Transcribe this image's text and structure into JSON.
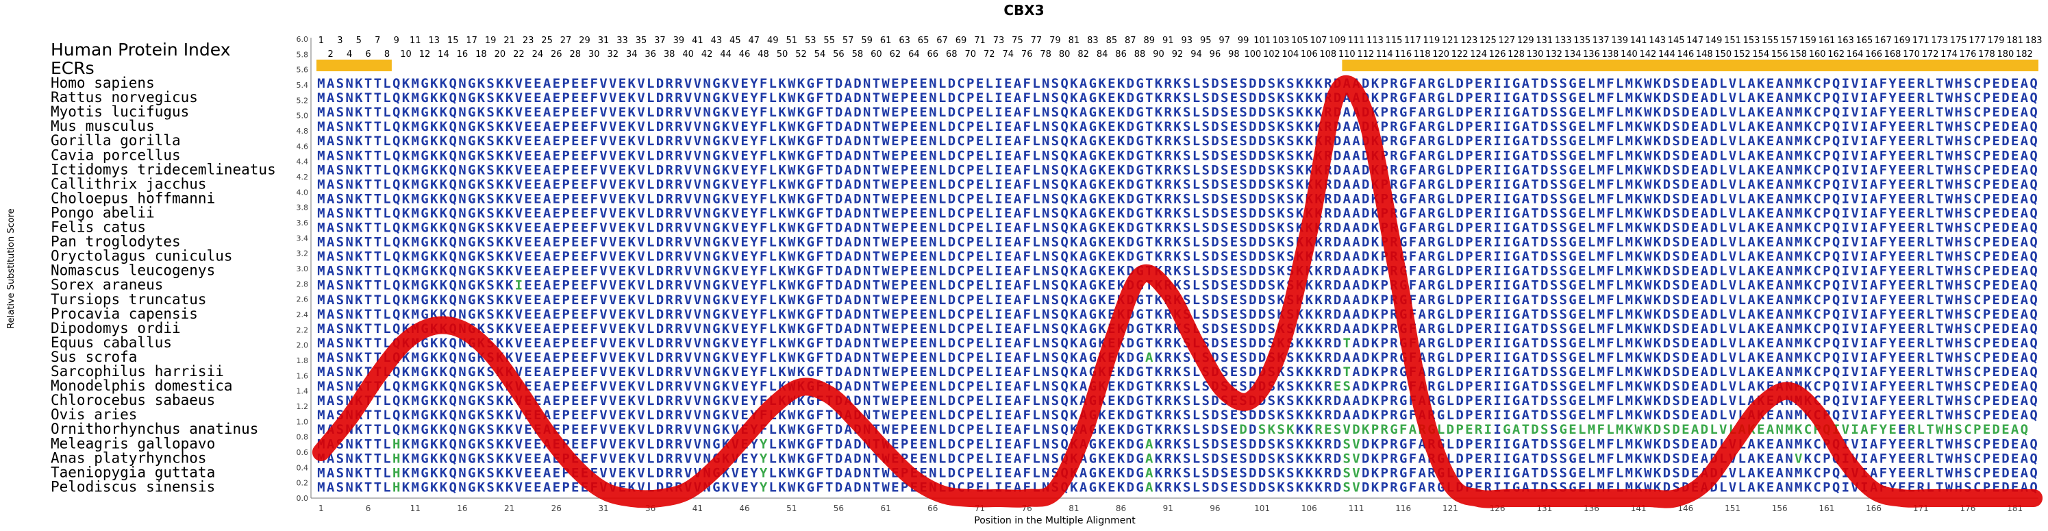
{
  "chart_data": {
    "type": "line",
    "title": "CBX3",
    "xlabel": "Position in the Multiple Alignment",
    "ylabel": "Relative Substitution Score",
    "ylim": [
      0.0,
      6.0
    ],
    "yticks": [
      "0.0",
      "0.2",
      "0.4",
      "0.6",
      "0.8",
      "1.0",
      "1.2",
      "1.4",
      "1.6",
      "1.8",
      "2.0",
      "2.2",
      "2.4",
      "2.6",
      "2.8",
      "3.0",
      "3.2",
      "3.4",
      "3.6",
      "3.8",
      "4.0",
      "4.2",
      "4.4",
      "4.6",
      "4.8",
      "5.0",
      "5.2",
      "5.4",
      "5.6",
      "5.8",
      "6.0"
    ],
    "xlim": [
      1,
      183
    ],
    "xticks": [
      1,
      6,
      11,
      16,
      21,
      26,
      31,
      36,
      41,
      46,
      51,
      56,
      61,
      66,
      71,
      76,
      81,
      86,
      91,
      96,
      101,
      106,
      111,
      116,
      121,
      126,
      131,
      136,
      141,
      146,
      151,
      156,
      161,
      166,
      171,
      176,
      181
    ],
    "protein_index_label": "Human Protein Index",
    "ecr_label": "ECRs",
    "ecr_ranges": [
      [
        1,
        8
      ],
      [
        110,
        183
      ]
    ],
    "ecr_color": "#f5b81c",
    "curve_color": "#e00000",
    "sequence_color": "#1f3aa6",
    "variant_color": "#3aa84a",
    "human_sequence": "MASNKTTLQKMGKKQNGKSKKVEEAEPEEFVVEKVLDRRVVNGKVEYFLKWKGFTDADNTWEPEENLDCPELIEAFLNSQKAGKEKDGTKRKSLSDSESDDSKSKKKRDAADKPRGFARGLDPERIIGATDSSGELMFLMKWKDSDEADLVLAKEANMKCPQIVIAFYEERLTWHSCPEDEAQ",
    "species": [
      {
        "name": "Homo sapiens",
        "seq": "MASNKTTLQKMGKKQNGKSKKVEEAEPEEFVVEKVLDRRVVNGKVEYFLKWKGFTDADNTWEPEENLDCPELIEAFLNSQKAGKEKDGTKRKSLSDSESDDSKSKKKRDAADKPRGFARGLDPERIIGATDSSGELMFLMKWKDSDEADLVLAKEANMKCPQIVIAFYEERLTWHSCPEDEAQ"
      },
      {
        "name": "Rattus norvegicus",
        "seq": "MASNKTTLQKMGKKQNGKSKKVEEAEPEEFVVEKVLDRRVVNGKVEYFLKWKGFTDADNTWEPEENLDCPELIEAFLNSQKAGKEKDGTKRKSLSDSESDDSKSKKKRDAADKPRGFARGLDPERIIGATDSSGELMFLMKWKDSDEADLVLAKEANMKCPQIVIAFYEERLTWHSCPEDEAQ"
      },
      {
        "name": "Myotis lucifugus",
        "seq": "MASNKTTLQKMGKKQNGKSKKVEEAEPEEFVVEKVLDRRVVNGKVEYFLKWKGFTDADNTWEPEENLDCPELIEAFLNSQKAGKEKDGTKRKSLSDSESDDSKSKKKRDAADKPRGFARGLDPERIIGATDSSGELMFLMKWKDSDEADLVLAKEANMKCPQIVIAFYEERLTWHSCPEDEAQ"
      },
      {
        "name": "Mus musculus",
        "seq": "MASNKTTLQKMGKKQNGKSKKVEEAEPEEFVVEKVLDRRVVNGKVEYFLKWKGFTDADNTWEPEENLDCPELIEAFLNSQKAGKEKDGTKRKSLSDSESDDSKSKKKRDAADKPRGFARGLDPERIIGATDSSGELMFLMKWKDSDEADLVLAKEANMKCPQIVIAFYEERLTWHSCPEDEAQ"
      },
      {
        "name": "Gorilla gorilla",
        "seq": "MASNKTTLQKMGKKQNGKSKKVEEAEPEEFVVEKVLDRRVVNGKVEYFLKWKGFTDADNTWEPEENLDCPELIEAFLNSQKAGKEKDGTKRKSLSDSESDDSKSKKKRDAADKPRGFARGLDPERIIGATDSSGELMFLMKWKDSDEADLVLAKEANMKCPQIVIAFYEERLTWHSCPEDEAQ"
      },
      {
        "name": "Cavia porcellus",
        "seq": "MASNKTTLQKMGKKQNGKSKKVEEAEPEEFVVEKVLDRRVVNGKVEYFLKWKGFTDADNTWEPEENLDCPELIEAFLNSQKAGKEKDGTKRKSLSDSESDDSKSKKKRDAADKPRGFARGLDPERIIGATDSSGELMFLMKWKDSDEADLVLAKEANMKCPQIVIAFYEERLTWHSCPEDEAQ"
      },
      {
        "name": "Ictidomys tridecemlineatus",
        "seq": "MASNKTTLQKMGKKQNGKSKKVEEAEPEEFVVEKVLDRRVVNGKVEYFLKWKGFTDADNTWEPEENLDCPELIEAFLNSQKAGKEKDGTKRKSLSDSESDDSKSKKKRDAADKPRGFARGLDPERIIGATDSSGELMFLMKWKDSDEADLVLAKEANMKCPQIVIAFYEERLTWHSCPEDEAQ"
      },
      {
        "name": "Callithrix jacchus",
        "seq": "MASNKTTLQKMGKKQNGKSKKVEEAEPEEFVVEKVLDRRVVNGKVEYFLKWKGFTDADNTWEPEENLDCPELIEAFLNSQKAGKEKDGTKRKSLSDSESDDSKSKKKRDAADKPRGFARGLDPERIIGATDSSGELMFLMKWKDSDEADLVLAKEANMKCPQIVIAFYEERLTWHSCPEDEAQ"
      },
      {
        "name": "Choloepus hoffmanni",
        "seq": "MASNKTTLQKMGKKQNGKSKKVEEAEPEEFVVEKVLDRRVVNGKVEYFLKWKGFTDADNTWEPEENLDCPELIEAFLNSQKAGKEKDGTKRKSLSDSESDDSKSKKKRDAADKPRGFARGLDPERIIGATDSSGELMFLMKWKDSDEADLVLAKEANMKCPQIVIAFYEERLTWHSCPEDEAQ"
      },
      {
        "name": "Pongo abelii",
        "seq": "MASNKTTLQKMGKKQNGKSKKVEEAEPEEFVVEKVLDRRVVNGKVEYFLKWKGFTDADNTWEPEENLDCPELIEAFLNSQKAGKEKDGTKRKSLSDSESDDSKSKKKRDAADKPRGFARGLDPERIIGATDSSGELMFLMKWKDSDEADLVLAKEANMKCPQIVIAFYEERLTWHSCPEDEAQ"
      },
      {
        "name": "Felis catus",
        "seq": "MASNKTTLQKMGKKQNGKSKKVEEAEPEEFVVEKVLDRRVVNGKVEYFLKWKGFTDADNTWEPEENLDCPELIEAFLNSQKAGKEKDGTKRKSLSDSESDDSKSKKKRDAADKPRGFARGLDPERIIGATDSSGELMFLMKWKDSDEADLVLAKEANMKCPQIVIAFYEERLTWHSCPEDEAQ"
      },
      {
        "name": "Pan troglodytes",
        "seq": "MASNKTTLQKMGKKQNGKSKKVEEAEPEEFVVEKVLDRRVVNGKVEYFLKWKGFTDADNTWEPEENLDCPELIEAFLNSQKAGKEKDGTKRKSLSDSESDDSKSKKKRDAADKPRGFARGLDPERIIGATDSSGELMFLMKWKDSDEADLVLAKEANMKCPQIVIAFYEERLTWHSCPEDEAQ"
      },
      {
        "name": "Oryctolagus cuniculus",
        "seq": "MASNKTTLQKMGKKQNGKSKKVEEAEPEEFVVEKVLDRRVVNGKVEYFLKWKGFTDADNTWEPEENLDCPELIEAFLNSQKAGKEKDGTKRKSLSDSESDDSKSKKKRDAADKPRGFARGLDPERIIGATDSSGELMFLMKWKDSDEADLVLAKEANMKCPQIVIAFYEERLTWHSCPEDEAQ"
      },
      {
        "name": "Nomascus leucogenys",
        "seq": "MASNKTTLQKMGKKQNGKSKKVEEAEPEEFVVEKVLDRRVVNGKVEYFLKWKGFTDADNTWEPEENLDCPELIEAFLNSQKAGKEKDGTKRKSLSDSESDDSKSKKKRDAADKPRGFARGLDPERIIGATDSSGELMFLMKWKDSDEADLVLAKEANMKCPQIVIAFYEERLTWHSCPEDEAQ"
      },
      {
        "name": "Sorex araneus",
        "seq": "MASNKTTLQKMGKKQNGKSKKIEEAEPEEFVVEKVLDRRVVNGKVEYFLKWKGFTDADNTWEPEENLDCPELIEAFLNSQKAGKEKDGTKRKSLSDSESDDSKSKKKRDAADKPRGFARGLDPERIIGATDSSGELMFLMKWKDSDEADLVLAKEANMKCPQIVIAFYEERLTWHSCPEDEAQ"
      },
      {
        "name": "Tursiops truncatus",
        "seq": "MASNKTTLQKMGKKQNGKSKKVEEAEPEEFVVEKVLDRRVVNGKVEYFLKWKGFTDADNTWEPEENLDCPELIEAFLNSQKAGKEKDGTKRKSLSDSESDDSKSKKKRDAADKPRGFARGLDPERIIGATDSSGELMFLMKWKDSDEADLVLAKEANMKCPQIVIAFYEERLTWHSCPEDEAQ"
      },
      {
        "name": "Procavia capensis",
        "seq": "MASNKTTLQKMGKKQNGKSKKVEEAEPEEFVVEKVLDRRVVNGKVEYFLKWKGFTDADNTWEPEENLDCPELIEAFLNSQKAGKEKDGTKRKSLSDSESDDSKSKKKRDAADKPRGFARGLDPERIIGATDSSGELMFLMKWKDSDEADLVLAKEANMKCPQIVIAFYEERLTWHSCPEDEAQ"
      },
      {
        "name": "Dipodomys ordii",
        "seq": "MASNKTTLQKMGKKQNGKSKKVEEAEPEEFVVEKVLDRRVVNGKVEYFLKWKGFTDADNTWEPEENLDCPELIEAFLNSQKAGKEKDGTKRKSLSDSESDDSKSKKKRDAADKPRGFARGLDPERIIGATDSSGELMFLMKWKDSDEADLVLAKEANMKCPQIVIAFYEERLTWHSCPEDEAQ"
      },
      {
        "name": "Equus caballus",
        "seq": "MASNKTTLQKMGKKQNGKSKKVEEAEPEEFVVEKVLDRRVVNGKVEYFLKWKGFTDADNTWEPEENLDCPELIEAFLNSQKAGKEKDGTKRKSLSDSESDDSKSKKKRDTADKPRGFARGLDPERIIGATDSSGELMFLMKWKDSDEADLVLAKEANMKCPQIVIAFYEERLTWHSCPEDEAQ"
      },
      {
        "name": "Sus scrofa",
        "seq": "MASNKTTLQKMGKKQNGKSKKVEEAEPEEFVVEKVLDRRVVNGKVEYFLKWKGFTDADNTWEPEENLDCPELIEAFLNSQKAGKEKDGAKRKSLSDSESDDSKSKKKRDAADKPRGFARGLDPERIIGATDSSGELMFLMKWKDSDEADLVLAKEANMKCPQIVIAFYEERLTWHSCPEDEAQ"
      },
      {
        "name": "Sarcophilus harrisii",
        "seq": "MASNKTTLQKMGKKQNGKSKKVEEAEPEEFVVEKVLDRRVVNGKVEYFLKWKGFTDADNTWEPEENLDCPELIEAFLNSQKAGKEKDGTKRKSLSDSESDDSKSKKKRDTADKPRGFARGLDPERIIGATDSSGELMFLMKWKDSDEADLVLAKEANMKCPQIVIAFYEERLTWHSCPEDEAQ"
      },
      {
        "name": "Monodelphis domestica",
        "seq": "MASNKTTLQKMGKKQNGKSKKVEEAEPEEFVVEKVLDRRVVNGKVEYFLKWKGFTDADNTWEPEENLDCPELIEAFLNSQKAGKEKDGTKRKSLSDSESDDSKSKKKRESADKPRGFARGLDPERIIGATDSSGELMFLMKWKDSDEADLVLAKEANMKCPQIVIAFYEERLTWHSCPEDEAQ"
      },
      {
        "name": "Chlorocebus sabaeus",
        "seq": "MASNKTTLQKMGKKQNGKSKKVEEAEPEEFVVEKVLDRRVVNGKVEYFLKWKGFTDADNTWEPEENLDCPELIEAFLNSQKAGKEKDGTKRKSLSDSESDDSKSKKKRDAADKPRGFARGLDPERIIGATDSSGELMFLMKWKDSDEADLVLAKEANMKCPQIVIAFYEERLTWHSCPEDEAQ"
      },
      {
        "name": "Ovis aries",
        "seq": "MASNKTTLQKMGKKQNGKSKKVEEAEPEEFVVEKVLDRRVVNGKVEYFLKWKGFTDADNTWEPEENLDCPELIEAFLNSQKAGKEKDGTKRKSLSDSESDDSKSKKKRDAADKPRGFARGLDPERIIGATDSSGELMFLMKWKDSDEADLVLAKEANMKCPQIVIAFYEERLTWHSCPEDEAQ"
      },
      {
        "name": "Ornithorhynchus anatinus",
        "seq": "MASNKTTLQKMGKKQNGKSKKVEEAEPEEFVVEKVLDRRVVNGKVEYFLKWKGFTDADNTWEPEENLDCPELIEAFLNSQKAGKEKDGTKRKSLSDSEDDSKSKKKRESVDKPRGFARGLDPERIIGATDSSGELMFLMKWKDSDEADLVLAKEANMKCPQIVIAFYEERLTWHSCPEDEAQ"
      },
      {
        "name": "Meleagris gallopavo",
        "seq": "MASNKTTLHKMGKKQNGKSKKVEEAEPEEFVVEKVLDRRVVNGKVEYYLKWKGFTDADNTWEPEENLDCPELIEAFLNSQKAGKEKDGAKRKSLSDSESDDSKSKKKRDSVDKPRGFARGLDPERIIGATDSSGELMFLMKWKDSDEADLVLAKEANMKCPQIVIAFYEERLTWHSCPEDEAQ"
      },
      {
        "name": "Anas platyrhynchos",
        "seq": "MASNKTTLHKMGKKQNGKSKKVEEAEPEEFVVEKVLDRRVVNGKVEYYLKWKGFTDADNTWEPEENLDCPELIEAFLNSQKAGKEKDGAKRKSLSDSESDDSKSKKKRDSVDKPRGFARGLDPERIIGATDSSGELMFLMKWKDSDEADLVLAKEANVKCPQIVIAFYEERLTWHSCPEDEAQ"
      },
      {
        "name": "Taeniopygia guttata",
        "seq": "MASNKTTLHKMGKKQNGKSKKVEEAEPEEFVVEKVLDRRVVNGKVEYYLKWKGFTDADNTWEPEENLDCPELIEAFLNSQKAGKEKDGAKRKSLSDSESDDSKSKKKRDSVDKPRGFARGLDPERIIGATDSSGELMFLMKWKDSDEADLVLAKEANMKCPQIVIAFYEERLTWHSCPEDEAQ"
      },
      {
        "name": "Pelodiscus sinensis",
        "seq": "MASNKTTLHKMGKKQNGKSKKVEEAEPEEFVVEKVLDRRVVNGKVEYYLKWKGFTDADNTWEPEENLDCPELIEAFLNSQKAGKEKDGAKRKSLSDSESDDSKSKKKRDSVDKPRGFARGLDPERIIGATDSSGELMFLMKWKDSDEADLVLAKEANMKCPQIVIAFYEERLTWHSCPEDEAQ"
      }
    ],
    "series": [
      {
        "x": [
          1,
          4,
          7,
          10,
          13,
          16,
          19,
          22,
          25,
          28,
          31,
          34,
          37,
          40,
          43,
          46,
          49,
          52,
          55,
          58,
          61,
          64,
          67,
          70,
          73,
          76,
          79,
          82,
          85,
          88,
          91,
          94,
          97,
          100,
          103,
          106,
          109,
          112,
          115,
          118,
          121,
          124,
          127,
          130,
          133,
          136,
          139,
          142,
          145,
          148,
          151,
          154,
          157,
          160,
          163,
          166,
          169,
          172,
          175,
          178,
          181,
          183
        ],
        "y": [
          0.6,
          1.05,
          1.6,
          2.05,
          2.25,
          2.2,
          1.9,
          1.4,
          0.85,
          0.4,
          0.1,
          0.0,
          0.0,
          0.1,
          0.4,
          0.8,
          1.2,
          1.45,
          1.35,
          1.0,
          0.6,
          0.25,
          0.05,
          0.0,
          0.0,
          0.0,
          0.1,
          0.85,
          2.0,
          2.9,
          2.7,
          2.0,
          1.4,
          1.3,
          2.0,
          3.5,
          5.3,
          5.0,
          3.2,
          1.2,
          0.2,
          0.0,
          0.0,
          0.0,
          0.0,
          0.0,
          0.0,
          0.0,
          0.0,
          0.2,
          0.7,
          1.2,
          1.4,
          1.1,
          0.5,
          0.1,
          0.0,
          0.0,
          0.0,
          0.0,
          0.0,
          0.0
        ]
      }
    ]
  }
}
